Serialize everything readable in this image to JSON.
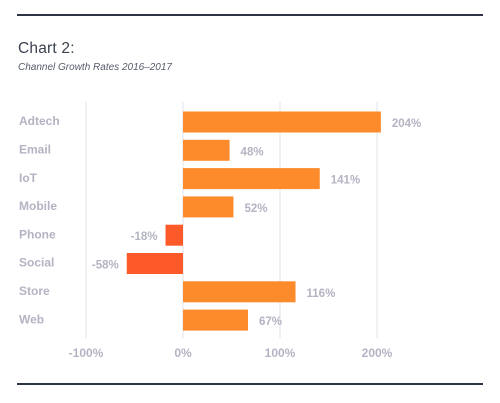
{
  "chart_data": {
    "type": "bar",
    "orientation": "horizontal",
    "title": "Chart 2:",
    "subtitle": "Channel Growth Rates 2016–2017",
    "categories": [
      "Adtech",
      "Email",
      "IoT",
      "Mobile",
      "Phone",
      "Social",
      "Store",
      "Web"
    ],
    "values": [
      204,
      48,
      141,
      52,
      -18,
      -58,
      116,
      67
    ],
    "value_labels": [
      "204%",
      "48%",
      "141%",
      "52%",
      "-18%",
      "-58%",
      "116%",
      "67%"
    ],
    "xlim": [
      -100,
      200
    ],
    "xticks": [
      -100,
      0,
      100,
      200
    ],
    "xtick_labels": [
      "-100%",
      "0%",
      "100%",
      "200%"
    ],
    "grid": true,
    "colors": {
      "positive": "#fd8b2b",
      "negative": "#fd5a2a",
      "grid": "#e3e3ea",
      "text": "#b3b3c3",
      "rule": "#2d3446"
    }
  }
}
